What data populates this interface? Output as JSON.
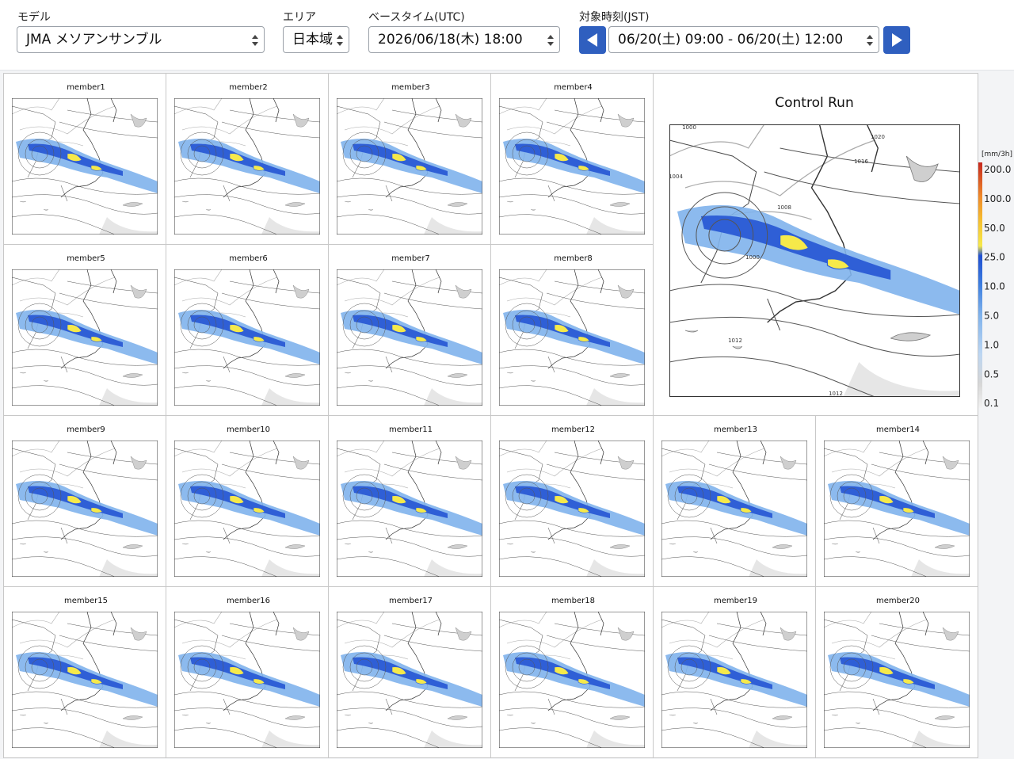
{
  "header": {
    "controls": [
      {
        "label": "モデル",
        "value": "JMA メソアンサンブル"
      },
      {
        "label": "エリア",
        "value": "日本域"
      },
      {
        "label": "ベースタイム(UTC)",
        "value": "2026/06/18(木) 18:00"
      },
      {
        "label": "対象時刻(JST)",
        "value": "06/20(土) 09:00 - 06/20(土) 12:00"
      }
    ]
  },
  "members": [
    {
      "title": "member1"
    },
    {
      "title": "member2"
    },
    {
      "title": "member3"
    },
    {
      "title": "member4"
    },
    {
      "title": "member5"
    },
    {
      "title": "member6"
    },
    {
      "title": "member7"
    },
    {
      "title": "member8"
    },
    {
      "title": "member9"
    },
    {
      "title": "member10"
    },
    {
      "title": "member11"
    },
    {
      "title": "member12"
    },
    {
      "title": "member13"
    },
    {
      "title": "member14"
    },
    {
      "title": "member15"
    },
    {
      "title": "member16"
    },
    {
      "title": "member17"
    },
    {
      "title": "member18"
    },
    {
      "title": "member19"
    },
    {
      "title": "member20"
    }
  ],
  "control_run": {
    "title": "Control Run",
    "contour_labels": [
      "1000",
      "1020",
      "1016",
      "1008",
      "1004",
      "1000",
      "1012",
      "1012"
    ]
  },
  "colorbar": {
    "unit": "[mm/3h]",
    "labels": [
      "200.0",
      "100.0",
      "50.0",
      "25.0",
      "10.0",
      "5.0",
      "1.0",
      "0.5",
      "0.1"
    ]
  }
}
